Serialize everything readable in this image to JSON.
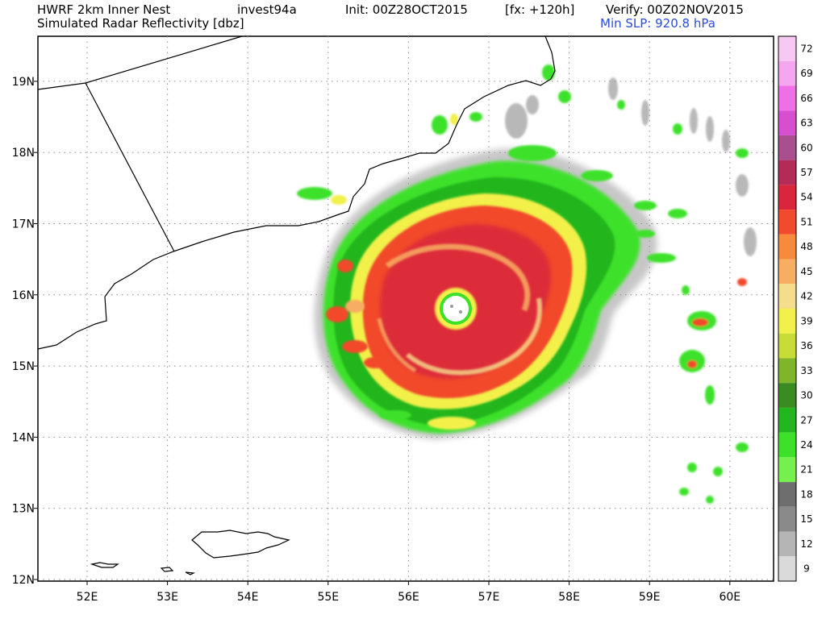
{
  "header": {
    "line1_left": "HWRF 2km Inner Nest",
    "storm_id": "invest94a",
    "init": "Init: 00Z28OCT2015",
    "forecast": "[fx: +120h]",
    "verify": "Verify: 00Z02NOV2015",
    "line2_left": "Simulated Radar Reflectivity [dbz]",
    "min_slp": "Min SLP: 920.8 hPa"
  },
  "axes": {
    "lon_labels": [
      "52E",
      "53E",
      "54E",
      "55E",
      "56E",
      "57E",
      "58E",
      "59E",
      "60E"
    ],
    "lat_labels": [
      "12N",
      "13N",
      "14N",
      "15N",
      "16N",
      "17N",
      "18N",
      "19N"
    ]
  },
  "colorbar": {
    "labels": [
      "72",
      "69",
      "66",
      "63",
      "60",
      "57",
      "54",
      "51",
      "48",
      "45",
      "42",
      "39",
      "36",
      "33",
      "30",
      "27",
      "24",
      "21",
      "18",
      "15",
      "12",
      "9"
    ],
    "colors": [
      "#f7c9f2",
      "#f4a6ee",
      "#ee6fe6",
      "#d64fd0",
      "#a94e8e",
      "#b42b57",
      "#d9263d",
      "#f14a2c",
      "#f78a3b",
      "#f7ad62",
      "#f4de8c",
      "#f2f04a",
      "#c8dc38",
      "#7fb52a",
      "#3a8c22",
      "#24b61f",
      "#3ee12a",
      "#76f04c",
      "#6e6e6e",
      "#8a8a8a",
      "#b5b5b5",
      "#dadada"
    ]
  }
}
